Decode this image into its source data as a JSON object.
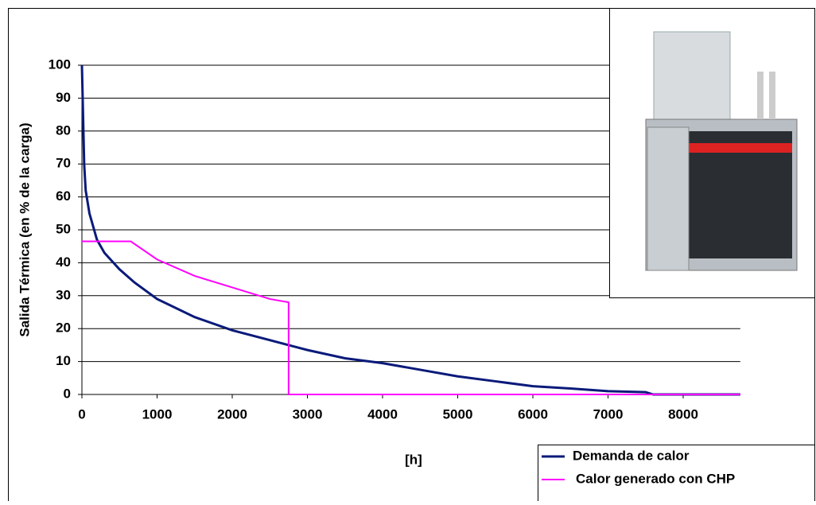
{
  "chart_data": {
    "type": "line",
    "x_label": "[h]",
    "y_label": "Salida Térmica (en % de la carga)",
    "xlim": [
      0,
      8760
    ],
    "xticks": [
      0,
      1000,
      2000,
      3000,
      4000,
      5000,
      6000,
      7000,
      8000
    ],
    "ylim": [
      0,
      100
    ],
    "yticks": [
      0,
      10,
      20,
      30,
      40,
      50,
      60,
      70,
      80,
      90,
      100
    ],
    "grid": true,
    "series": [
      {
        "name": "Demanda de calor",
        "color": "#0a1a7a",
        "x": [
          0,
          10,
          20,
          30,
          50,
          100,
          200,
          300,
          500,
          700,
          1000,
          1500,
          2000,
          2500,
          2750,
          3000,
          3500,
          4000,
          4500,
          5000,
          5500,
          6000,
          6500,
          7000,
          7500,
          7600,
          8760
        ],
        "values": [
          100,
          90,
          80,
          70,
          62,
          55,
          47,
          43,
          38,
          34,
          29,
          23.5,
          19.5,
          16.5,
          15,
          13.5,
          11,
          9.5,
          7.5,
          5.5,
          4,
          2.5,
          1.8,
          1,
          0.7,
          0,
          0
        ]
      },
      {
        "name": "Calor generado con CHP",
        "color": "#ff00ff",
        "x": [
          0,
          650,
          1000,
          1500,
          2000,
          2500,
          2750,
          2750,
          8760
        ],
        "values": [
          46.5,
          46.5,
          41,
          36,
          32.5,
          29,
          28,
          0,
          0
        ]
      }
    ]
  }
}
